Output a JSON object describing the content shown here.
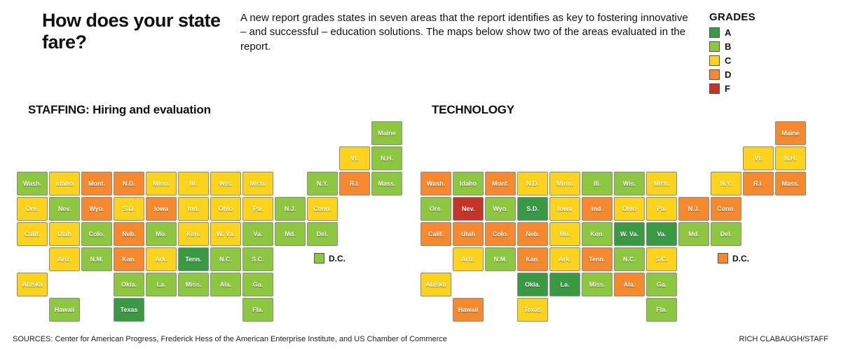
{
  "header": {
    "title": "How does your state fare?",
    "description": "A new report grades states in seven areas that the report identifies as key to fostering innovative – and successful – education solutions. The maps below show two of the areas evaluated in the report."
  },
  "legend": {
    "title": "GRADES",
    "items": [
      {
        "grade": "A",
        "color": "#3a9a44"
      },
      {
        "grade": "B",
        "color": "#8dc63f"
      },
      {
        "grade": "C",
        "color": "#fdd31c"
      },
      {
        "grade": "D",
        "color": "#f6882e"
      },
      {
        "grade": "F",
        "color": "#c53427"
      }
    ]
  },
  "maps": [
    {
      "key": "staffing",
      "title": "STAFFING: Hiring and evaluation"
    },
    {
      "key": "technology",
      "title": "TECHNOLOGY"
    }
  ],
  "states": [
    {
      "id": "WA",
      "label": "Wash.",
      "staffing": "B",
      "technology": "D"
    },
    {
      "id": "OR",
      "label": "Ore.",
      "staffing": "C",
      "technology": "B"
    },
    {
      "id": "CA",
      "label": "Calif.",
      "staffing": "C",
      "technology": "D"
    },
    {
      "id": "ID",
      "label": "Idaho",
      "staffing": "C",
      "technology": "B"
    },
    {
      "id": "NV",
      "label": "Nev.",
      "staffing": "B",
      "technology": "F"
    },
    {
      "id": "UT",
      "label": "Utah",
      "staffing": "C",
      "technology": "D"
    },
    {
      "id": "AZ",
      "label": "Ariz.",
      "staffing": "C",
      "technology": "C"
    },
    {
      "id": "MT",
      "label": "Mont.",
      "staffing": "D",
      "technology": "D"
    },
    {
      "id": "WY",
      "label": "Wyo.",
      "staffing": "D",
      "technology": "B"
    },
    {
      "id": "CO",
      "label": "Colo.",
      "staffing": "B",
      "technology": "D"
    },
    {
      "id": "NM",
      "label": "N.M.",
      "staffing": "B",
      "technology": "B"
    },
    {
      "id": "ND",
      "label": "N.D.",
      "staffing": "D",
      "technology": "C"
    },
    {
      "id": "SD",
      "label": "S.D.",
      "staffing": "C",
      "technology": "A"
    },
    {
      "id": "NE",
      "label": "Neb.",
      "staffing": "D",
      "technology": "D"
    },
    {
      "id": "KS",
      "label": "Kan.",
      "staffing": "D",
      "technology": "D"
    },
    {
      "id": "OK",
      "label": "Okla.",
      "staffing": "B",
      "technology": "A"
    },
    {
      "id": "TX",
      "label": "Texas",
      "staffing": "A",
      "technology": "C"
    },
    {
      "id": "MN",
      "label": "Minn.",
      "staffing": "C",
      "technology": "C"
    },
    {
      "id": "IA",
      "label": "Iowa",
      "staffing": "D",
      "technology": "C"
    },
    {
      "id": "MO",
      "label": "Mo.",
      "staffing": "B",
      "technology": "C"
    },
    {
      "id": "AR",
      "label": "Ark.",
      "staffing": "C",
      "technology": "C"
    },
    {
      "id": "LA",
      "label": "La.",
      "staffing": "B",
      "technology": "A"
    },
    {
      "id": "WI",
      "label": "Wis.",
      "staffing": "C",
      "technology": "B"
    },
    {
      "id": "IL",
      "label": "Ill.",
      "staffing": "C",
      "technology": "B"
    },
    {
      "id": "MS",
      "label": "Miss.",
      "staffing": "B",
      "technology": "B"
    },
    {
      "id": "MI",
      "label": "Mich.",
      "staffing": "C",
      "technology": "C"
    },
    {
      "id": "IN",
      "label": "Ind.",
      "staffing": "C",
      "technology": "D"
    },
    {
      "id": "OH",
      "label": "Ohio",
      "staffing": "C",
      "technology": "C"
    },
    {
      "id": "KY",
      "label": "Ken.",
      "staffing": "C",
      "technology": "B"
    },
    {
      "id": "TN",
      "label": "Tenn.",
      "staffing": "A",
      "technology": "D"
    },
    {
      "id": "AL",
      "label": "Ala.",
      "staffing": "B",
      "technology": "D"
    },
    {
      "id": "GA",
      "label": "Ga.",
      "staffing": "B",
      "technology": "B"
    },
    {
      "id": "FL",
      "label": "Fla.",
      "staffing": "B",
      "technology": "B"
    },
    {
      "id": "WV",
      "label": "W. Va.",
      "staffing": "C",
      "technology": "A"
    },
    {
      "id": "VA",
      "label": "Va.",
      "staffing": "B",
      "technology": "A"
    },
    {
      "id": "NC",
      "label": "N.C.",
      "staffing": "B",
      "technology": "B"
    },
    {
      "id": "SC",
      "label": "S.C.",
      "staffing": "B",
      "technology": "C"
    },
    {
      "id": "NY",
      "label": "N.Y.",
      "staffing": "B",
      "technology": "C"
    },
    {
      "id": "PA",
      "label": "Pa.",
      "staffing": "C",
      "technology": "C"
    },
    {
      "id": "NJ",
      "label": "N.J.",
      "staffing": "B",
      "technology": "D"
    },
    {
      "id": "DE",
      "label": "Del.",
      "staffing": "B",
      "technology": "B"
    },
    {
      "id": "MD",
      "label": "Md.",
      "staffing": "B",
      "technology": "B"
    },
    {
      "id": "CT",
      "label": "Conn.",
      "staffing": "C",
      "technology": "D"
    },
    {
      "id": "RI",
      "label": "R.I.",
      "staffing": "D",
      "technology": "D"
    },
    {
      "id": "MA",
      "label": "Mass.",
      "staffing": "B",
      "technology": "D"
    },
    {
      "id": "VT",
      "label": "Vt.",
      "staffing": "C",
      "technology": "C"
    },
    {
      "id": "NH",
      "label": "N.H.",
      "staffing": "B",
      "technology": "C"
    },
    {
      "id": "ME",
      "label": "Maine",
      "staffing": "B",
      "technology": "D"
    },
    {
      "id": "AK",
      "label": "Alaska",
      "staffing": "C",
      "technology": "C"
    },
    {
      "id": "HI",
      "label": "Hawaii",
      "staffing": "B",
      "technology": "D"
    },
    {
      "id": "DC",
      "label": "D.C.",
      "staffing": "B",
      "technology": "D"
    }
  ],
  "footer": {
    "sources": "SOURCES: Center for American Progress, Frederick Hess of the American Enterprise Institute, and US Chamber of Commerce",
    "credit": "RICH CLABAUGH/STAFF"
  }
}
